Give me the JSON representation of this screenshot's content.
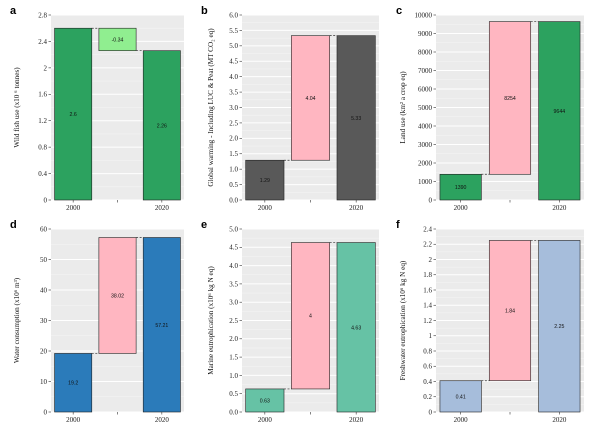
{
  "chart_data": [
    {
      "type": "bar",
      "panel": "a",
      "categories": [
        "2000",
        "",
        "2020"
      ],
      "ylabel": "Wild fish use (x10 ⁶ tonnes)",
      "ylim": [
        0,
        2.8
      ],
      "yticks": [
        0,
        0.4,
        0.8,
        1.2,
        1.6,
        2.0,
        2.4,
        2.8
      ],
      "ytick_labels": [
        "0",
        "0.4",
        "0.8",
        "1.2",
        "1.6",
        "2",
        "2.4",
        "2.8"
      ],
      "bars": [
        {
          "bottom": 0,
          "top": 2.6,
          "label": "2.6",
          "color": "#2ca25f"
        },
        {
          "bottom": 2.26,
          "top": 2.6,
          "label": "-0.34",
          "color": "#90ee90"
        },
        {
          "bottom": 0,
          "top": 2.26,
          "label": "2.26",
          "color": "#2ca25f"
        }
      ]
    },
    {
      "type": "bar",
      "panel": "b",
      "categories": [
        "2000",
        "",
        "2020"
      ],
      "ylabel": "Global warming - Including LUC & Peat (MT CO₂ eq)",
      "ylim": [
        0,
        6.0
      ],
      "yticks": [
        0,
        0.5,
        1.0,
        1.5,
        2.0,
        2.5,
        3.0,
        3.5,
        4.0,
        4.5,
        5.0,
        5.5,
        6.0
      ],
      "ytick_labels": [
        "0.0",
        "0.5",
        "1.0",
        "1.5",
        "2.0",
        "2.5",
        "3.0",
        "3.5",
        "4.0",
        "4.5",
        "5.0",
        "5.5",
        "6.0"
      ],
      "bars": [
        {
          "bottom": 0,
          "top": 1.29,
          "label": "1.29",
          "color": "#595959"
        },
        {
          "bottom": 1.29,
          "top": 5.33,
          "label": "4.04",
          "color": "#ffb6c1"
        },
        {
          "bottom": 0,
          "top": 5.33,
          "label": "5.33",
          "color": "#595959"
        }
      ]
    },
    {
      "type": "bar",
      "panel": "c",
      "categories": [
        "2000",
        "",
        "2020"
      ],
      "ylabel": "Land use (km² a crop eq)",
      "ylim": [
        0,
        10000
      ],
      "yticks": [
        0,
        1000,
        2000,
        3000,
        4000,
        5000,
        6000,
        7000,
        8000,
        9000,
        10000
      ],
      "ytick_labels": [
        "0",
        "1000",
        "2000",
        "3000",
        "4000",
        "5000",
        "6000",
        "7000",
        "8000",
        "9000",
        "10000"
      ],
      "bars": [
        {
          "bottom": 0,
          "top": 1390,
          "label": "1390",
          "color": "#2ca25f"
        },
        {
          "bottom": 1390,
          "top": 9644,
          "label": "8254",
          "color": "#ffb6c1"
        },
        {
          "bottom": 0,
          "top": 9644,
          "label": "9644",
          "color": "#2ca25f"
        }
      ]
    },
    {
      "type": "bar",
      "panel": "d",
      "categories": [
        "2000",
        "",
        "2020"
      ],
      "ylabel": "Water consumption (x10⁶ m³)",
      "ylim": [
        0,
        60
      ],
      "yticks": [
        0,
        10,
        20,
        30,
        40,
        50,
        60
      ],
      "ytick_labels": [
        "0",
        "10",
        "20",
        "30",
        "40",
        "50",
        "60"
      ],
      "bars": [
        {
          "bottom": 0,
          "top": 19.2,
          "label": "19.2",
          "color": "#2b7bba"
        },
        {
          "bottom": 19.2,
          "top": 57.21,
          "label": "38.02",
          "color": "#ffb6c1"
        },
        {
          "bottom": 0,
          "top": 57.21,
          "label": "57.21",
          "color": "#2b7bba"
        }
      ]
    },
    {
      "type": "bar",
      "panel": "e",
      "categories": [
        "2000",
        "",
        "2020"
      ],
      "ylabel": "Marine eutrophication (x10⁶ kg N eq)",
      "ylim": [
        0,
        5.0
      ],
      "yticks": [
        0,
        0.5,
        1.0,
        1.5,
        2.0,
        2.5,
        3.0,
        3.5,
        4.0,
        4.5,
        5.0
      ],
      "ytick_labels": [
        "0.0",
        "0.5",
        "1.0",
        "1.5",
        "2.0",
        "2.5",
        "3.0",
        "3.5",
        "4.0",
        "4.5",
        "5.0"
      ],
      "bars": [
        {
          "bottom": 0,
          "top": 0.63,
          "label": "0.63",
          "color": "#66c2a5"
        },
        {
          "bottom": 0.63,
          "top": 4.63,
          "label": "4",
          "color": "#ffb6c1"
        },
        {
          "bottom": 0,
          "top": 4.63,
          "label": "4.63",
          "color": "#66c2a5"
        }
      ]
    },
    {
      "type": "bar",
      "panel": "f",
      "categories": [
        "2000",
        "",
        "2020"
      ],
      "ylabel": "Freshwater eutrophication (x10⁶ kg N eq)",
      "ylim": [
        0,
        2.4
      ],
      "yticks": [
        0,
        0.2,
        0.4,
        0.6,
        0.8,
        1.0,
        1.2,
        1.4,
        1.6,
        1.8,
        2.0,
        2.2,
        2.4
      ],
      "ytick_labels": [
        "0",
        "0.2",
        "0.4",
        "0.6",
        "0.8",
        "1",
        "1.2",
        "1.4",
        "1.6",
        "1.8",
        "2",
        "2.2",
        "2.4"
      ],
      "bars": [
        {
          "bottom": 0,
          "top": 0.41,
          "label": "0.41",
          "color": "#a6bddb"
        },
        {
          "bottom": 0.41,
          "top": 2.25,
          "label": "1.84",
          "color": "#ffb6c1"
        },
        {
          "bottom": 0,
          "top": 2.25,
          "label": "2.25",
          "color": "#a6bddb"
        }
      ]
    }
  ]
}
